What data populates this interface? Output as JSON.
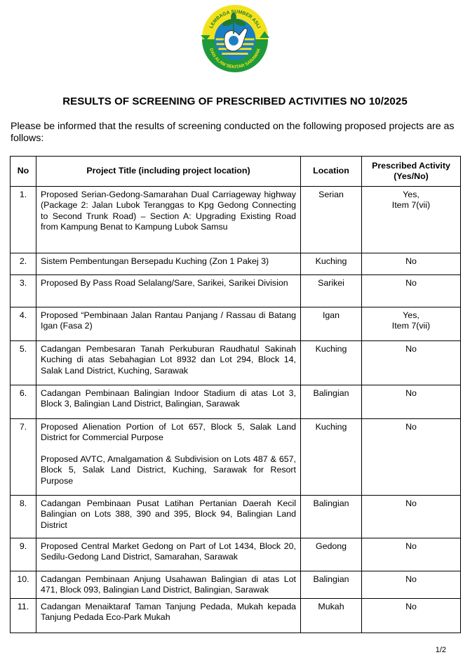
{
  "logo": {
    "top_text": "LEMBAGA SUMBER ASLI",
    "bottom_text": "DAN ALAM SEKITAR SARAWAK",
    "colors": {
      "yellow": "#f2e21c",
      "green": "#1e9a3c",
      "blue": "#1a7fc4"
    }
  },
  "title": "RESULTS OF SCREENING OF PRESCRIBED ACTIVITIES NO  10/2025",
  "intro": "Please be informed that the results of screening conducted on the following proposed projects are as follows:",
  "table": {
    "headers": [
      "No",
      "Project Title (including project location)",
      "Location",
      "Prescribed Activity (Yes/No)"
    ],
    "rows": [
      {
        "no": "1.",
        "title": [
          "Proposed Serian-Gedong-Samarahan Dual Carriageway highway (Package 2: Jalan Lubok Teranggas to Kpg Gedong Connecting to Second Trunk Road) – Section A: Upgrading Existing Road from Kampung Benat to Kampung Lubok Samsu"
        ],
        "location": "Serian",
        "activity": [
          "Yes,",
          "Item 7(vii)"
        ]
      },
      {
        "no": "2.",
        "title": [
          "Sistem Pembentungan Bersepadu Kuching (Zon 1 Pakej 3)"
        ],
        "location": "Kuching",
        "activity": [
          "No"
        ]
      },
      {
        "no": "3.",
        "title": [
          "Proposed By Pass Road Selalang/Sare, Sarikei, Sarikei Division"
        ],
        "location": "Sarikei",
        "activity": [
          "No"
        ]
      },
      {
        "no": "4.",
        "title": [
          "Proposed “Pembinaan Jalan Rantau Panjang / Rassau di Batang Igan (Fasa 2)"
        ],
        "location": "Igan",
        "activity": [
          "Yes,",
          "Item 7(vii)"
        ]
      },
      {
        "no": "5.",
        "title": [
          "Cadangan Pembesaran Tanah Perkuburan Raudhatul Sakinah Kuching di atas Sebahagian Lot 8932 dan Lot 294, Block 14, Salak Land District, Kuching, Sarawak"
        ],
        "location": "Kuching",
        "activity": [
          "No"
        ]
      },
      {
        "no": "6.",
        "title": [
          "Cadangan Pembinaan Balingian Indoor Stadium di atas Lot 3, Block 3, Balingian Land District, Balingian, Sarawak"
        ],
        "location": "Balingian",
        "activity": [
          "No"
        ]
      },
      {
        "no": "7.",
        "title": [
          "Proposed Alienation Portion of Lot 657, Block 5, Salak Land District for Commercial Purpose",
          "Proposed AVTC, Amalgamation & Subdivision on Lots 487 & 657, Block 5, Salak Land District, Kuching, Sarawak for Resort Purpose"
        ],
        "location": "Kuching",
        "activity": [
          "No"
        ]
      },
      {
        "no": "8.",
        "title": [
          "Cadangan Pembinaan Pusat Latihan Pertanian Daerah Kecil Balingian on Lots 388, 390 and 395, Block 94, Balingian Land District"
        ],
        "location": "Balingian",
        "activity": [
          "No"
        ]
      },
      {
        "no": "9.",
        "title": [
          "Proposed Central Market Gedong on Part of Lot 1434, Block 20, Sedilu-Gedong Land District, Samarahan, Sarawak"
        ],
        "location": "Gedong",
        "activity": [
          "No"
        ]
      },
      {
        "no": "10.",
        "title": [
          "Cadangan Pembinaan Anjung Usahawan Balingian di atas Lot 471, Block 093, Balingian Land District, Balingian, Sarawak"
        ],
        "location": "Balingian",
        "activity": [
          "No"
        ]
      },
      {
        "no": "11.",
        "title": [
          "Cadangan Menaiktaraf Taman Tanjung Pedada, Mukah kepada Tanjung Pedada Eco-Park Mukah"
        ],
        "location": "Mukah",
        "activity": [
          "No"
        ]
      }
    ]
  },
  "page_number": "1/2"
}
